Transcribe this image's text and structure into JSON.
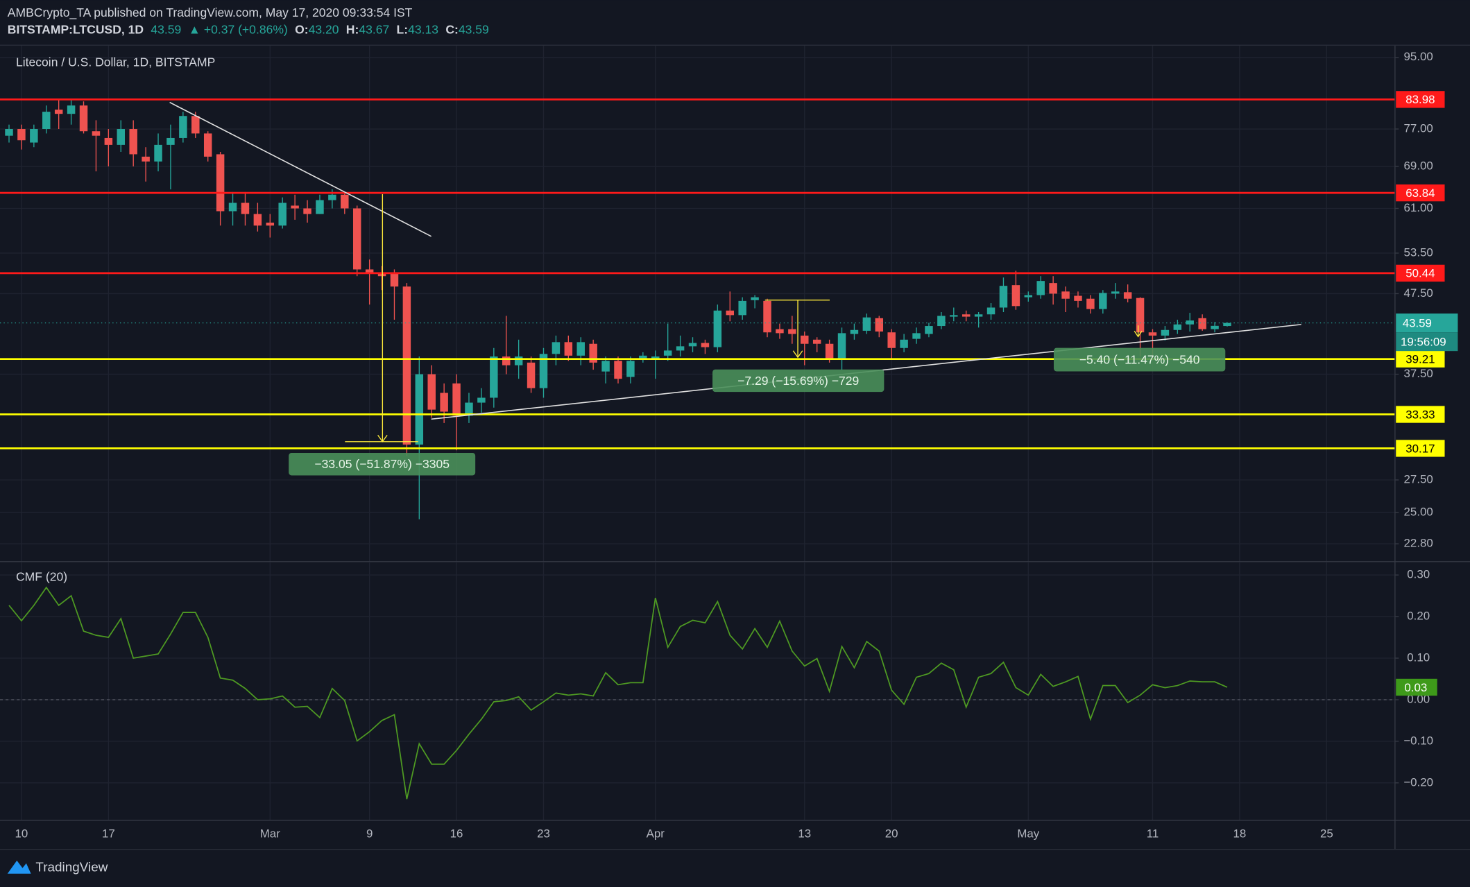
{
  "header": {
    "publisher": "AMBCrypto_TA published on TradingView.com, May 17, 2020 09:33:54 IST",
    "symbol": "BITSTAMP:LTCUSD, 1D",
    "last": "43.59",
    "change": "▲ +0.37 (+0.86%)",
    "ohlc": [
      {
        "key": "O:",
        "value": "43.20"
      },
      {
        "key": "H:",
        "value": "43.67"
      },
      {
        "key": "L:",
        "value": "43.13"
      },
      {
        "key": "C:",
        "value": "43.59"
      }
    ]
  },
  "brand": "TradingView",
  "chart_data": [
    {
      "type": "candlestick",
      "title": "Litecoin / U.S. Dollar, 1D, BITSTAMP",
      "log_scale": true,
      "grid": true,
      "up_color": "#26a69a",
      "down_color": "#ef5350",
      "categories": [
        null,
        "10",
        null,
        null,
        null,
        null,
        null,
        null,
        "17",
        null,
        null,
        null,
        null,
        null,
        null,
        null,
        null,
        null,
        null,
        null,
        null,
        "Mar",
        null,
        null,
        null,
        null,
        null,
        null,
        null,
        "9",
        null,
        null,
        null,
        null,
        null,
        null,
        "16",
        null,
        null,
        null,
        null,
        null,
        null,
        "23",
        null,
        null,
        null,
        null,
        null,
        null,
        null,
        null,
        "Apr",
        null,
        null,
        null,
        null,
        null,
        null,
        null,
        null,
        null,
        null,
        null,
        "13",
        null,
        null,
        null,
        null,
        null,
        null,
        "20",
        null,
        null,
        null,
        null,
        null,
        null,
        null,
        null,
        null,
        null,
        "May",
        null,
        null,
        null,
        null,
        null,
        null,
        null,
        null,
        null,
        "11",
        null,
        null,
        null,
        null,
        null,
        null,
        "18",
        null,
        null,
        null,
        null,
        null,
        null,
        "25",
        null,
        null,
        null,
        null,
        null
      ],
      "open": [
        75.5,
        77,
        74,
        77,
        81.5,
        80.5,
        82.5,
        76.5,
        75,
        73.5,
        77,
        71,
        70,
        73.5,
        75,
        80,
        76,
        71.5,
        60.5,
        62,
        60,
        58.5,
        58,
        61.5,
        61,
        60,
        62.5,
        63.5,
        61,
        51,
        50.5,
        50.5,
        48.5,
        30.5,
        37.5,
        35.5,
        36.5,
        33.2,
        34.5,
        35,
        39.5,
        38.5,
        38.8,
        36,
        39.8,
        41.2,
        39.6,
        41,
        37.8,
        39,
        37.2,
        39.2,
        39.3,
        39.6,
        40.2,
        40.7,
        41.1,
        40.6,
        45.2,
        44.6,
        46.6,
        46.5,
        42.8,
        42.8,
        42,
        41.5,
        41,
        39.2,
        42.2,
        42.6,
        44.2,
        42.4,
        40.5,
        41.6,
        42.2,
        43.2,
        44.4,
        44.7,
        44.4,
        44.7,
        45.6,
        48.7,
        47,
        47.3,
        49,
        47.8,
        47.2,
        46.8,
        45.4,
        47.5,
        47.7,
        46.9,
        42.4,
        42,
        42.7,
        43.4,
        44.2,
        42.8,
        43.2,
        null,
        null,
        null,
        null,
        null,
        null,
        null,
        null,
        null,
        null,
        null,
        null,
        null
      ],
      "high": [
        78,
        78,
        78,
        82.5,
        84,
        84,
        83.5,
        79,
        77,
        79,
        79,
        73,
        76,
        78,
        81,
        81,
        76.5,
        72,
        64,
        64,
        62,
        60,
        63,
        63.5,
        62.5,
        63.5,
        64.5,
        64,
        61.5,
        52.5,
        51.5,
        51,
        49,
        39.5,
        38.5,
        36.5,
        37.5,
        35.5,
        36,
        40.5,
        44.5,
        41.5,
        39.5,
        40.5,
        42,
        42,
        41.8,
        41.5,
        39.5,
        39.5,
        39.5,
        40,
        40.2,
        43.5,
        42,
        41.8,
        41.5,
        46,
        47.8,
        47,
        47.3,
        46.8,
        43.5,
        44.5,
        42.5,
        41.8,
        41.5,
        43,
        43.5,
        44.8,
        44.5,
        42.8,
        42.2,
        43,
        43.6,
        45,
        45.6,
        45.2,
        45,
        46.2,
        49.8,
        50.8,
        47.8,
        50,
        50,
        48.5,
        47.8,
        47.3,
        48,
        49,
        48.8,
        47,
        42.8,
        43.2,
        44,
        44.9,
        44.7,
        43.7,
        43.67,
        null,
        null,
        null,
        null,
        null,
        null,
        null,
        null,
        null,
        null,
        null,
        null,
        null
      ],
      "low": [
        74,
        72.5,
        73,
        76,
        77,
        78,
        76,
        68,
        69,
        72,
        69,
        66,
        68,
        64.5,
        74,
        75,
        70,
        58,
        58,
        58,
        57,
        56,
        57.5,
        59,
        58.5,
        60,
        61,
        60,
        50,
        46,
        48,
        44,
        29.5,
        24.5,
        33,
        32.5,
        30,
        32.5,
        33.5,
        34,
        37.5,
        37,
        35.5,
        35,
        38.5,
        39,
        38.5,
        38,
        36.5,
        36.5,
        36.5,
        38.8,
        37,
        39,
        39.5,
        40,
        39.8,
        40,
        43.8,
        44,
        45.5,
        41.8,
        41.6,
        41,
        38.5,
        40,
        38.8,
        38,
        41.5,
        42.2,
        41.8,
        39.2,
        40,
        41,
        41.8,
        42.8,
        43.8,
        43.8,
        43,
        44,
        45,
        45.3,
        46.4,
        46.8,
        46,
        45,
        45.6,
        44.8,
        44.8,
        46.8,
        46.3,
        39.5,
        39.2,
        41.4,
        42.2,
        42.5,
        42.6,
        42.4,
        43.13,
        null,
        null,
        null,
        null,
        null,
        null,
        null,
        null,
        null,
        null,
        null,
        null,
        null
      ],
      "close": [
        77,
        74.5,
        77,
        81,
        80.5,
        82.5,
        76.5,
        75.5,
        73.5,
        77,
        71.5,
        70,
        73.5,
        75,
        80,
        76,
        71,
        60.5,
        62,
        60,
        58,
        58,
        62,
        61,
        60,
        62.5,
        63.5,
        61,
        51,
        50.5,
        50,
        48.5,
        30.5,
        37.5,
        33.8,
        33.6,
        33.2,
        34.5,
        35,
        39.5,
        38.5,
        39.5,
        36,
        39.8,
        41.2,
        39.6,
        41.2,
        38.8,
        39,
        37,
        39,
        39.6,
        39.5,
        40.2,
        40.7,
        41.1,
        40.6,
        45.2,
        44.6,
        46.5,
        47,
        42.4,
        42.3,
        42.2,
        41,
        41,
        39.2,
        42.3,
        42.7,
        44.3,
        42.5,
        40.5,
        41.5,
        42.3,
        43.2,
        44.5,
        44.6,
        44.4,
        44.7,
        45.6,
        48.6,
        45.8,
        47.3,
        49.3,
        47.5,
        46.8,
        46.5,
        45.4,
        47.6,
        47.8,
        46.8,
        42.4,
        42,
        42.7,
        43.4,
        43.9,
        42.8,
        43.22,
        43.59,
        null,
        null,
        null,
        null,
        null,
        null,
        null,
        null,
        null,
        null,
        null,
        null,
        null
      ],
      "ylim": [
        21.64,
        98.47
      ],
      "yticks": [
        {
          "value": 95,
          "label": "95.00"
        },
        {
          "value": 77,
          "label": "77.00"
        },
        {
          "value": 69,
          "label": "69.00"
        },
        {
          "value": 61,
          "label": "61.00"
        },
        {
          "value": 53.5,
          "label": "53.50"
        },
        {
          "value": 47.5,
          "label": "47.50"
        },
        {
          "value": 37.5,
          "label": "37.50"
        },
        {
          "value": 27.5,
          "label": "27.50"
        },
        {
          "value": 25,
          "label": "25.00"
        },
        {
          "value": 22.8,
          "label": "22.80"
        }
      ],
      "levels": [
        {
          "value": 83.98,
          "color": "#ff1a1a",
          "text_color": "#ffffff"
        },
        {
          "value": 63.84,
          "color": "#ff1a1a",
          "text_color": "#ffffff"
        },
        {
          "value": 50.44,
          "color": "#ff1a1a",
          "text_color": "#ffffff"
        },
        {
          "value": 39.21,
          "color": "#ffff00",
          "text_color": "#000000"
        },
        {
          "value": 33.33,
          "color": "#ffff00",
          "text_color": "#000000"
        },
        {
          "value": 30.17,
          "color": "#ffff00",
          "text_color": "#000000"
        }
      ],
      "current_price": 43.59,
      "countdown": "19:56:09",
      "annotations": [
        "−33.05 (−51.87%) −3305",
        "−7.29 (−15.69%) −729",
        "−5.40 (−11.47%) −540"
      ]
    },
    {
      "type": "line",
      "title": "CMF (20)",
      "color": "#4e9a22",
      "values": [
        0.227,
        0.19,
        0.227,
        0.27,
        0.227,
        0.25,
        0.165,
        0.155,
        0.15,
        0.195,
        0.1,
        0.105,
        0.11,
        0.158,
        0.21,
        0.21,
        0.15,
        0.052,
        0.047,
        0.027,
        0,
        0.002,
        0.009,
        -0.018,
        -0.016,
        -0.043,
        0.027,
        -0.002,
        -0.099,
        -0.077,
        -0.05,
        -0.036,
        -0.239,
        -0.106,
        -0.155,
        -0.155,
        -0.122,
        -0.083,
        -0.047,
        -0.005,
        -0.002,
        0.007,
        -0.025,
        -0.005,
        0.016,
        0.011,
        0.014,
        0.009,
        0.065,
        0.036,
        0.041,
        0.041,
        0.245,
        0.126,
        0.176,
        0.191,
        0.185,
        0.236,
        0.155,
        0.122,
        0.171,
        0.126,
        0.189,
        0.117,
        0.081,
        0.099,
        0.02,
        0.128,
        0.077,
        0.14,
        0.117,
        0.023,
        -0.011,
        0.054,
        0.063,
        0.088,
        0.072,
        -0.018,
        0.054,
        0.063,
        0.09,
        0.029,
        0.011,
        0.061,
        0.032,
        0.043,
        0.056,
        -0.047,
        0.034,
        0.034,
        -0.007,
        0.011,
        0.036,
        0.029,
        0.034,
        0.045,
        0.043,
        0.043,
        0.03
      ],
      "current_value": 0.03,
      "ylim": [
        -0.29,
        0.33
      ],
      "yticks": [
        {
          "value": 0.3,
          "label": "0.30"
        },
        {
          "value": 0.2,
          "label": "0.20"
        },
        {
          "value": 0.1,
          "label": "0.10"
        },
        {
          "value": 0,
          "label": "0.00"
        },
        {
          "value": -0.1,
          "label": "−0.10"
        },
        {
          "value": -0.2,
          "label": "−0.20"
        }
      ],
      "grid": true
    }
  ]
}
